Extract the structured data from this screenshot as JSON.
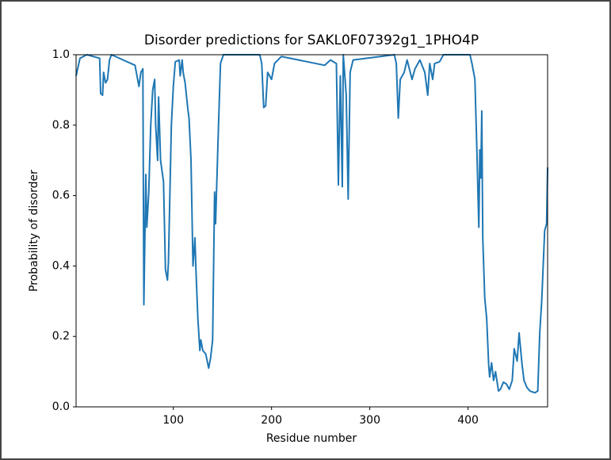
{
  "chart_data": {
    "type": "line",
    "title": "Disorder predictions for SAKL0F07392g1_1PHO4P",
    "xlabel": "Residue number",
    "ylabel": "Probability of disorder",
    "color": "#1f77b4",
    "x": [
      1,
      5,
      12,
      25,
      26,
      28,
      29,
      31,
      33,
      35,
      37,
      61,
      65,
      67,
      69,
      70,
      72,
      73,
      75,
      77,
      79,
      81,
      82,
      84,
      85,
      87,
      90,
      92,
      94,
      95,
      98,
      100,
      102,
      106,
      107,
      109,
      110,
      112,
      115,
      116,
      118,
      120,
      122,
      123,
      125,
      127,
      128,
      130,
      133,
      136,
      138,
      140,
      142,
      143,
      146,
      148,
      151,
      188,
      190,
      192,
      194,
      196,
      200,
      203,
      210,
      254,
      260,
      266,
      268,
      270,
      272,
      273,
      276,
      278,
      280,
      283,
      325,
      327,
      329,
      331,
      335,
      338,
      343,
      346,
      351,
      356,
      359,
      361,
      364,
      366,
      371,
      375,
      402,
      404,
      407,
      409,
      411,
      412,
      413,
      414,
      415,
      417,
      419,
      421,
      422,
      424,
      426,
      428,
      431,
      433,
      436,
      439,
      442,
      445,
      447,
      450,
      452,
      455,
      457,
      460,
      463,
      468,
      471,
      473,
      475,
      478,
      480,
      481
    ],
    "values": [
      0.94,
      0.99,
      1.0,
      0.99,
      0.89,
      0.885,
      0.95,
      0.92,
      0.93,
      0.985,
      1.0,
      0.97,
      0.91,
      0.95,
      0.96,
      0.29,
      0.66,
      0.51,
      0.61,
      0.8,
      0.9,
      0.93,
      0.8,
      0.7,
      0.88,
      0.7,
      0.64,
      0.39,
      0.36,
      0.41,
      0.8,
      0.91,
      0.98,
      0.985,
      0.94,
      0.985,
      0.95,
      0.92,
      0.84,
      0.82,
      0.7,
      0.4,
      0.48,
      0.39,
      0.25,
      0.16,
      0.19,
      0.16,
      0.15,
      0.11,
      0.14,
      0.19,
      0.61,
      0.52,
      0.8,
      0.975,
      1.0,
      1.0,
      0.975,
      0.85,
      0.855,
      0.95,
      0.93,
      0.975,
      0.995,
      0.97,
      0.985,
      0.975,
      0.63,
      0.94,
      0.625,
      1.0,
      0.885,
      0.59,
      0.95,
      0.985,
      1.0,
      0.975,
      0.82,
      0.93,
      0.95,
      0.985,
      0.93,
      0.96,
      0.985,
      0.95,
      0.885,
      0.975,
      0.93,
      0.975,
      0.98,
      1.0,
      1.0,
      0.975,
      0.93,
      0.73,
      0.51,
      0.73,
      0.65,
      0.84,
      0.48,
      0.31,
      0.25,
      0.12,
      0.085,
      0.125,
      0.075,
      0.1,
      0.045,
      0.05,
      0.07,
      0.065,
      0.05,
      0.075,
      0.165,
      0.13,
      0.21,
      0.12,
      0.075,
      0.055,
      0.045,
      0.04,
      0.045,
      0.21,
      0.3,
      0.5,
      0.52,
      0.68
    ],
    "xlim": [
      1,
      481
    ],
    "xticks": [
      100,
      200,
      300,
      400
    ],
    "ylim": [
      0,
      1
    ],
    "yticks": [
      {
        "value": 0,
        "label": "0.0"
      },
      0.2,
      0.4,
      0.6,
      0.8,
      {
        "value": 1,
        "label": "1.0"
      }
    ]
  }
}
